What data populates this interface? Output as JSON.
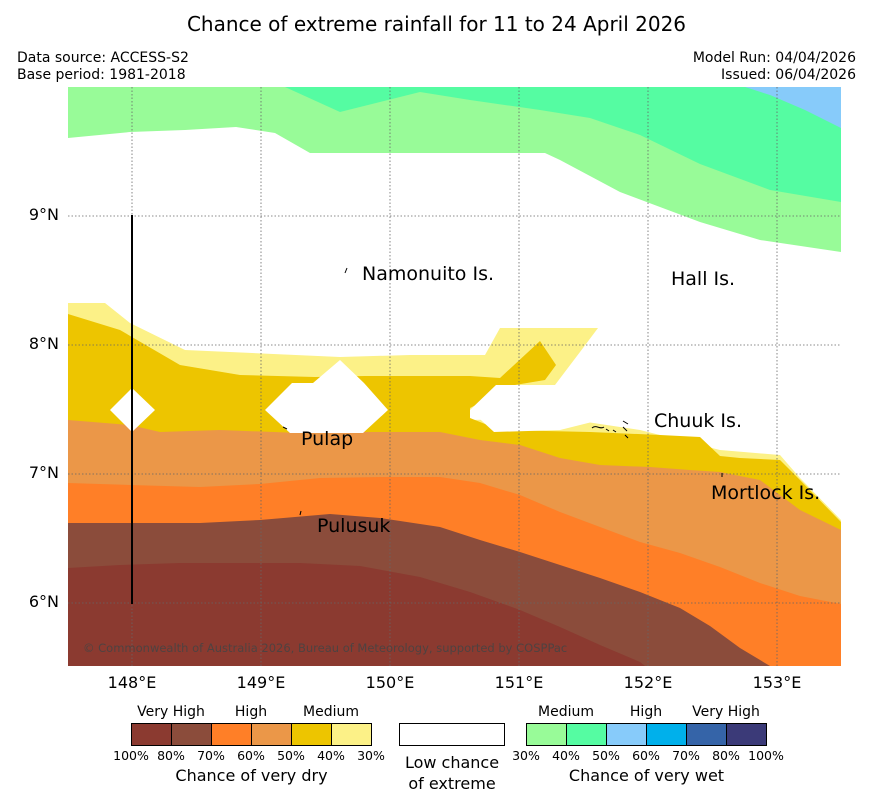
{
  "title": "Chance of extreme rainfall for 11 to 24 April 2026",
  "meta": {
    "source": "Data source: ACCESS-S2",
    "base_period": "Base period: 1981-2018",
    "model_run": "Model Run: 04/04/2026",
    "issued": "Issued: 06/04/2026"
  },
  "map": {
    "lat_labels": [
      "9°N",
      "8°N",
      "7°N",
      "6°N"
    ],
    "lon_labels": [
      "148°E",
      "149°E",
      "150°E",
      "151°E",
      "152°E",
      "153°E"
    ],
    "places": [
      "Namonuito Is.",
      "Hall Is.",
      "Pulap",
      "Chuuk Is.",
      "Mortlock Is.",
      "Pulusuk"
    ],
    "copyright": "© Commonwealth of Australia 2026, Bureau of Meteorology, supported by COSPPac"
  },
  "legend": {
    "dry": {
      "categories": [
        "Very High",
        "High",
        "Medium"
      ],
      "ticks": [
        "100%",
        "80%",
        "70%",
        "60%",
        "50%",
        "40%",
        "30%"
      ],
      "colors": [
        "#8b3a30",
        "#8b4c3b",
        "#ff7f27",
        "#eb9748",
        "#edc500",
        "#fcf187"
      ],
      "caption": "Chance of very dry"
    },
    "neutral": {
      "caption_line1": "Low chance",
      "caption_line2": "of extreme",
      "color": "#ffffff"
    },
    "wet": {
      "categories": [
        "Medium",
        "High",
        "Very High"
      ],
      "ticks": [
        "30%",
        "40%",
        "50%",
        "60%",
        "70%",
        "80%",
        "100%"
      ],
      "colors": [
        "#98fb98",
        "#55fca2",
        "#87cbfa",
        "#00b0eb",
        "#3564a8",
        "#3b3a78"
      ],
      "caption": "Chance of very wet"
    }
  }
}
